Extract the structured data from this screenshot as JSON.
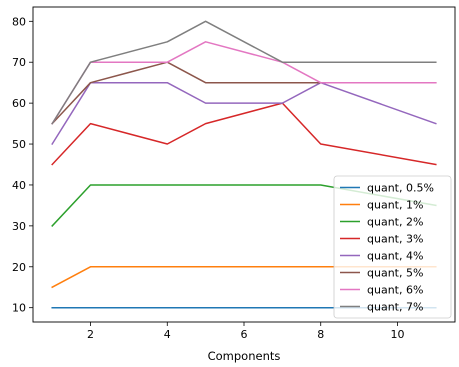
{
  "chart_data": {
    "type": "line",
    "title": "",
    "xlabel": "Components",
    "ylabel": "",
    "xlim": [
      0.5,
      11.5
    ],
    "ylim": [
      6.5,
      83.5
    ],
    "x_ticks": [
      2,
      4,
      6,
      8,
      10
    ],
    "y_ticks": [
      10,
      20,
      30,
      40,
      50,
      60,
      70,
      80
    ],
    "grid": false,
    "legend_position": "lower right",
    "x": [
      1,
      2,
      4,
      5,
      7,
      8,
      11
    ],
    "series": [
      {
        "name": "quant, 0.5%",
        "color": "#1f77b4",
        "values": [
          10,
          10,
          10,
          10,
          10,
          10,
          10
        ]
      },
      {
        "name": "quant, 1%",
        "color": "#ff7f0e",
        "values": [
          15,
          20,
          20,
          20,
          20,
          20,
          20
        ]
      },
      {
        "name": "quant, 2%",
        "color": "#2ca02c",
        "values": [
          30,
          40,
          40,
          40,
          40,
          40,
          35
        ]
      },
      {
        "name": "quant, 3%",
        "color": "#d62728",
        "values": [
          45,
          55,
          50,
          55,
          60,
          50,
          45
        ]
      },
      {
        "name": "quant, 4%",
        "color": "#9467bd",
        "values": [
          50,
          65,
          65,
          60,
          60,
          65,
          55
        ]
      },
      {
        "name": "quant, 5%",
        "color": "#8c564b",
        "values": [
          55,
          65,
          70,
          65,
          65,
          65,
          65
        ]
      },
      {
        "name": "quant, 6%",
        "color": "#e377c2",
        "values": [
          55,
          70,
          70,
          75,
          70,
          65,
          65
        ]
      },
      {
        "name": "quant, 7%",
        "color": "#7f7f7f",
        "values": [
          55,
          70,
          75,
          80,
          70,
          70,
          70
        ]
      }
    ]
  }
}
